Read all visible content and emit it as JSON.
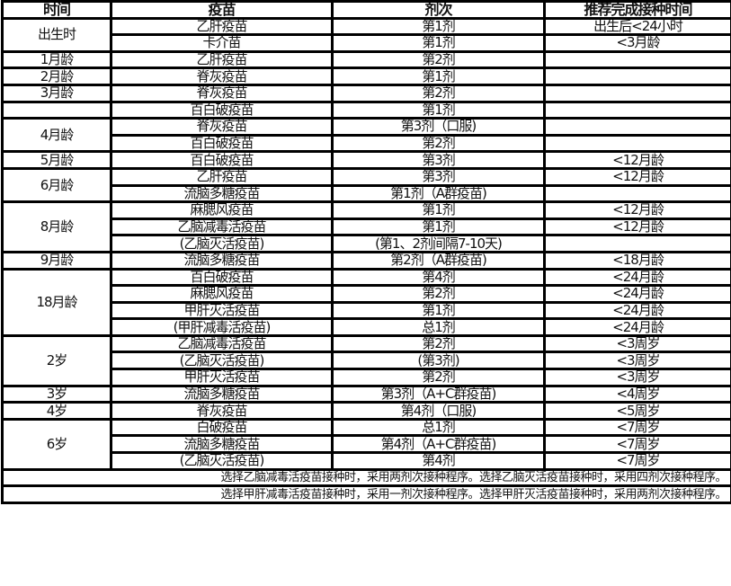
{
  "headers": [
    "时间",
    "疫苗",
    "剂次",
    "推荐完成接种时间"
  ],
  "groups": [
    {
      "time": "出生时",
      "rows": [
        [
          "乙肝疫苗",
          "第1剂",
          "出生后<24小时"
        ],
        [
          "卡介苗",
          "第1剂",
          "<3月龄"
        ]
      ]
    },
    {
      "time": "1月龄",
      "rows": [
        [
          "乙肝疫苗",
          "第2剂",
          ""
        ]
      ]
    },
    {
      "time": "2月龄",
      "rows": [
        [
          "脊灰疫苗",
          "第1剂",
          ""
        ]
      ]
    },
    {
      "time": "3月龄",
      "rows": [
        [
          "脊灰疫苗",
          "第2剂",
          ""
        ]
      ]
    },
    {
      "time": "",
      "rows": [
        [
          "百白破疫苗",
          "第1剂",
          ""
        ]
      ]
    },
    {
      "time": "4月龄",
      "rows": [
        [
          "脊灰疫苗",
          "第3剂（口服)",
          ""
        ],
        [
          "百白破疫苗",
          "第2剂",
          ""
        ]
      ]
    },
    {
      "time": "5月龄",
      "rows": [
        [
          "百白破疫苗",
          "第3剂",
          "<12月龄"
        ]
      ]
    },
    {
      "time": "6月龄",
      "rows": [
        [
          "乙肝疫苗",
          "第3剂",
          "<12月龄"
        ],
        [
          "流脑多糖疫苗",
          "第1剂（A群疫苗)",
          ""
        ]
      ]
    },
    {
      "time": "8月龄",
      "rows": [
        [
          "麻腮风疫苗",
          "第1剂",
          "<12月龄"
        ],
        [
          "乙脑减毒活疫苗",
          "第1剂",
          "<12月龄"
        ],
        [
          "(乙脑灭活疫苗)",
          "(第1、2剂间隔7-10天)",
          ""
        ]
      ]
    },
    {
      "time": "9月龄",
      "rows": [
        [
          "流脑多糖疫苗",
          "第2剂（A群疫苗)",
          "<18月龄"
        ]
      ]
    },
    {
      "time": "18月龄",
      "rows": [
        [
          "百白破疫苗",
          "第4剂",
          "<24月龄"
        ],
        [
          "麻腮风疫苗",
          "第2剂",
          "<24月龄"
        ],
        [
          "甲肝灭活疫苗",
          "第1剂",
          "<24月龄"
        ],
        [
          "(甲肝减毒活疫苗)",
          "总1剂",
          "<24月龄"
        ]
      ]
    },
    {
      "time": "2岁",
      "rows": [
        [
          "乙脑减毒活疫苗",
          "第2剂",
          "<3周岁"
        ],
        [
          "(乙脑灭活疫苗)",
          "(第3剂)",
          "<3周岁"
        ],
        [
          "甲肝灭活疫苗",
          "第2剂",
          "<3周岁"
        ]
      ]
    },
    {
      "time": "3岁",
      "rows": [
        [
          "流脑多糖疫苗",
          "第3剂（A+C群疫苗)",
          "<4周岁"
        ]
      ]
    },
    {
      "time": "4岁",
      "rows": [
        [
          "脊灰疫苗",
          "第4剂（口服)",
          "<5周岁"
        ]
      ]
    },
    {
      "time": "6岁",
      "rows": [
        [
          "白破疫苗",
          "总1剂",
          "<7周岁"
        ],
        [
          "流脑多糖疫苗",
          "第4剂（A+C群疫苗)",
          "<7周岁"
        ],
        [
          "(乙脑灭活疫苗)",
          "第4剂",
          "<7周岁"
        ]
      ]
    }
  ],
  "notes": [
    "选择乙脑减毒活疫苗接种时，采用两剂次接种程序。选择乙脑灭活疫苗接种时，采用四剂次接种程序。",
    "选择甲肝减毒活疫苗接种时，采用一剂次接种程序。选择甲肝灭活疫苗接种时，采用两剂次接种程序。"
  ]
}
